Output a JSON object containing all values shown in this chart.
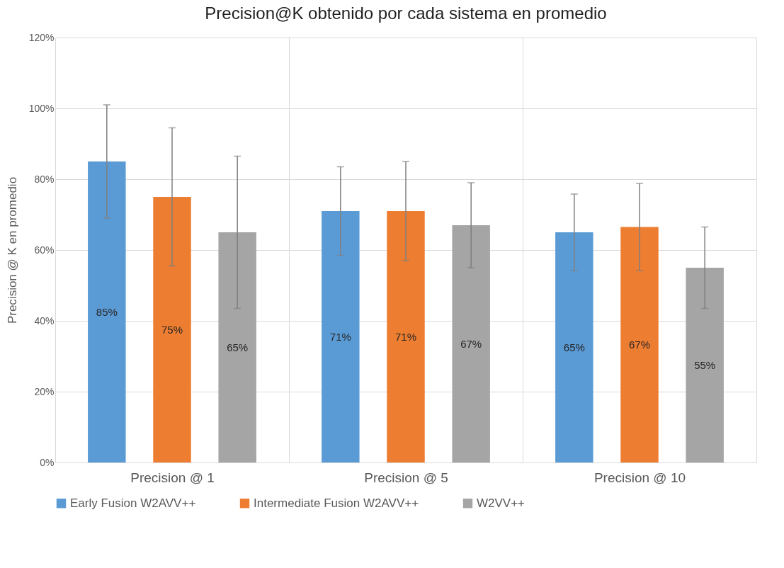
{
  "chart_data": {
    "type": "bar",
    "title": "Precision@K obtenido por cada sistema en promedio",
    "ylabel": "Precision @ K en promedio",
    "categories": [
      "Precision @ 1",
      "Precision @ 5",
      "Precision @ 10"
    ],
    "series": [
      {
        "name": "Early Fusion W2AVV++",
        "color": "#5b9bd5",
        "values": [
          85,
          71,
          65
        ],
        "errors": [
          16,
          12.5,
          10.8
        ],
        "value_labels": [
          "85%",
          "71%",
          "65%"
        ]
      },
      {
        "name": "Intermediate Fusion W2AVV++",
        "color": "#ed7d31",
        "values": [
          75,
          71,
          66.5
        ],
        "errors": [
          19.5,
          14,
          12.3
        ],
        "value_labels": [
          "75%",
          "71%",
          "67%"
        ]
      },
      {
        "name": "W2VV++",
        "color": "#a5a5a5",
        "values": [
          65,
          67,
          55
        ],
        "errors": [
          21.5,
          12,
          11.5
        ],
        "value_labels": [
          "65%",
          "67%",
          "55%"
        ]
      }
    ],
    "ylim": [
      0,
      120
    ],
    "yticks": [
      {
        "value": 0,
        "label": "0%"
      },
      {
        "value": 20,
        "label": "20%"
      },
      {
        "value": 40,
        "label": "40%"
      },
      {
        "value": 60,
        "label": "60%"
      },
      {
        "value": 80,
        "label": "80%"
      },
      {
        "value": 100,
        "label": "100%"
      },
      {
        "value": 120,
        "label": "120%"
      }
    ],
    "grid": true,
    "legend": "bottom"
  }
}
